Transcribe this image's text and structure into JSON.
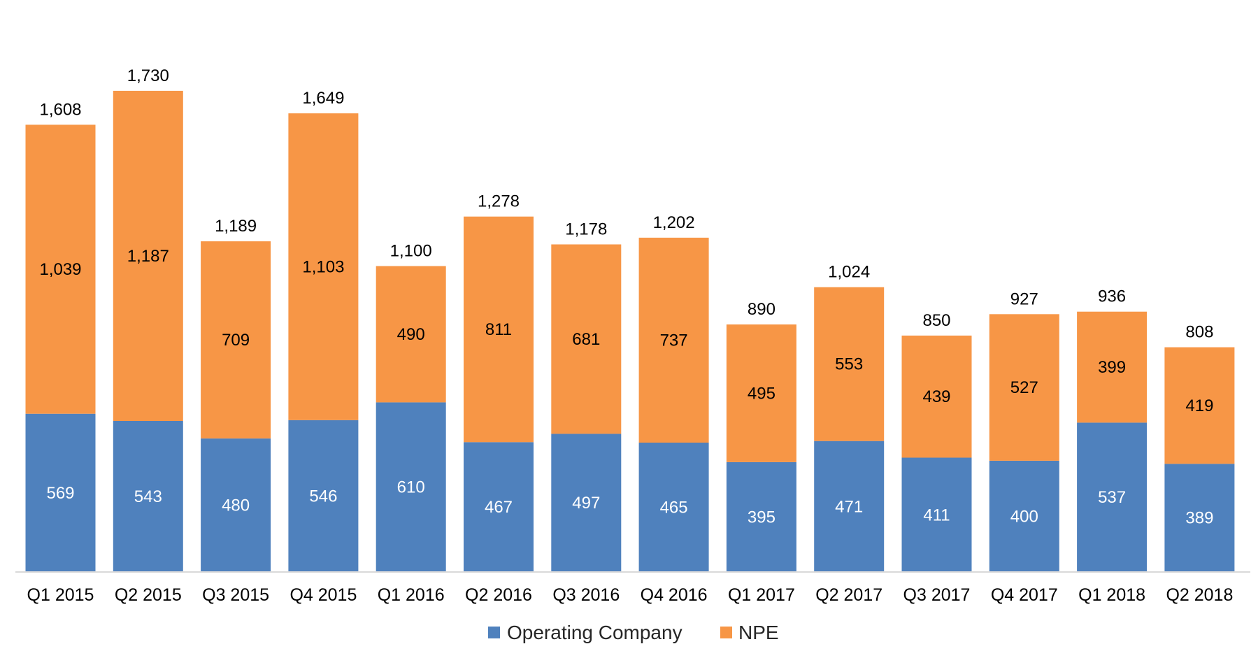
{
  "chart_data": {
    "type": "bar",
    "stacked": true,
    "title": "",
    "xlabel": "",
    "ylabel": "",
    "ylim": [
      0,
      1730
    ],
    "grid": false,
    "legend_position": "bottom",
    "categories": [
      "Q1 2015",
      "Q2 2015",
      "Q3 2015",
      "Q4 2015",
      "Q1 2016",
      "Q2 2016",
      "Q3 2016",
      "Q4 2016",
      "Q1 2017",
      "Q2 2017",
      "Q3 2017",
      "Q4 2017",
      "Q1 2018",
      "Q2 2018"
    ],
    "series": [
      {
        "name": "Operating Company",
        "color": "#4f81bd",
        "values": [
          569,
          543,
          480,
          546,
          610,
          467,
          497,
          465,
          395,
          471,
          411,
          400,
          537,
          389
        ]
      },
      {
        "name": "NPE",
        "color": "#f79646",
        "values": [
          1039,
          1187,
          709,
          1103,
          490,
          811,
          681,
          737,
          495,
          553,
          439,
          527,
          399,
          419
        ]
      }
    ],
    "total_labels": [
      "1,608",
      "1,730",
      "1,189",
      "1,649",
      "1,100",
      "1,278",
      "1,178",
      "1,202",
      "890",
      "1,024",
      "850",
      "927",
      "936",
      "808"
    ],
    "segment_labels": [
      [
        "569",
        "543",
        "480",
        "546",
        "610",
        "467",
        "497",
        "465",
        "395",
        "471",
        "411",
        "400",
        "537",
        "389"
      ],
      [
        "1,039",
        "1,187",
        "709",
        "1,103",
        "490",
        "811",
        "681",
        "737",
        "495",
        "553",
        "439",
        "527",
        "399",
        "419"
      ]
    ]
  }
}
